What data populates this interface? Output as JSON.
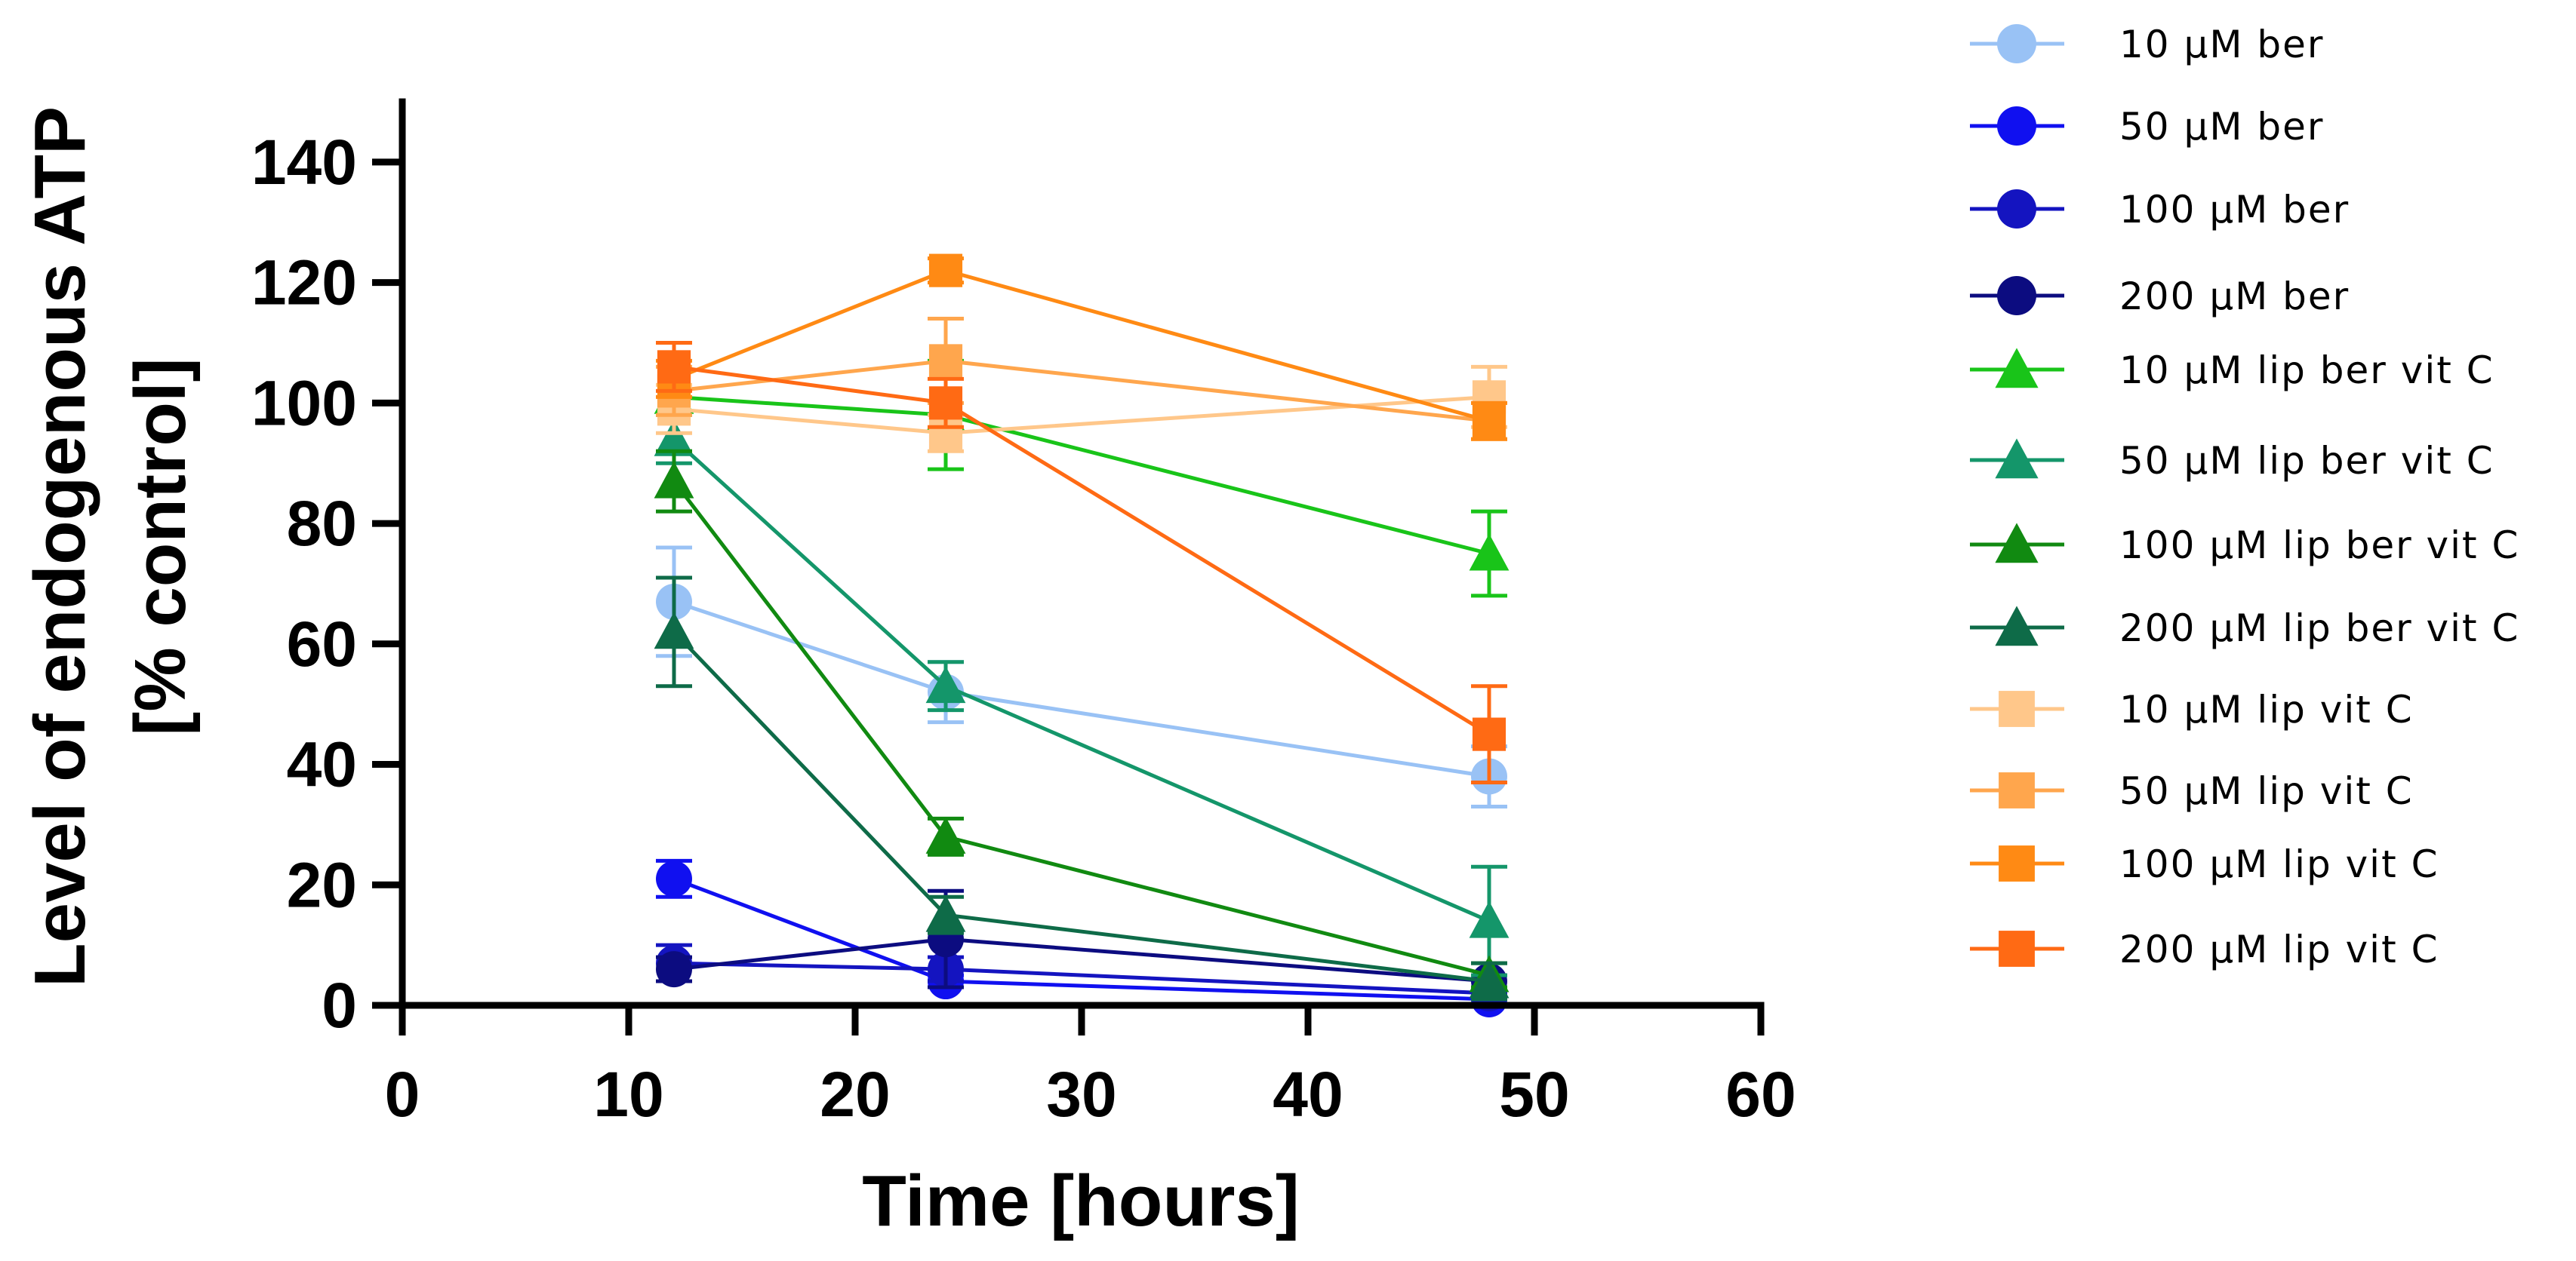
{
  "chart_data": {
    "type": "line",
    "title": "",
    "xlabel": "Time [hours]",
    "ylabel_lines": [
      "Level of endogenous ATP",
      "[% control]"
    ],
    "xlim": [
      0,
      60
    ],
    "ylim": [
      0,
      150
    ],
    "xticks": [
      0,
      10,
      20,
      30,
      40,
      50,
      60
    ],
    "yticks": [
      0,
      20,
      40,
      60,
      80,
      100,
      120,
      140
    ],
    "grid": false,
    "legend_position": "right",
    "x": [
      12,
      24,
      48
    ],
    "series": [
      {
        "name": "10 µM ber",
        "color": "#99C2F5",
        "marker": "circle",
        "values": [
          67,
          52,
          38
        ],
        "errors": [
          9,
          5,
          5
        ]
      },
      {
        "name": "50 µM ber",
        "color": "#1010F0",
        "marker": "circle",
        "values": [
          21,
          4,
          1
        ],
        "errors": [
          3,
          1,
          1
        ]
      },
      {
        "name": "100 µM ber",
        "color": "#1414C0",
        "marker": "circle",
        "values": [
          7,
          6,
          2
        ],
        "errors": [
          3,
          2,
          1
        ]
      },
      {
        "name": "200 µM ber",
        "color": "#0C0C80",
        "marker": "circle",
        "values": [
          6,
          11,
          4
        ],
        "errors": [
          2,
          8,
          1
        ]
      },
      {
        "name": "10 µM lip ber vit C",
        "color": "#19C419",
        "marker": "triangle",
        "values": [
          101,
          98,
          75
        ],
        "errors": [
          9,
          9,
          7
        ]
      },
      {
        "name": "50 µM lip ber vit C",
        "color": "#14966A",
        "marker": "triangle",
        "values": [
          94,
          53,
          14
        ],
        "errors": [
          4,
          4,
          9
        ]
      },
      {
        "name": "100 µM lip ber vit C",
        "color": "#118A11",
        "marker": "triangle",
        "values": [
          87,
          28,
          5
        ],
        "errors": [
          5,
          3,
          2
        ]
      },
      {
        "name": "200 µM lip ber vit C",
        "color": "#0E6B48",
        "marker": "triangle",
        "values": [
          62,
          15,
          4
        ],
        "errors": [
          9,
          3,
          3
        ]
      },
      {
        "name": "10 µM lip vit C",
        "color": "#FFC78A",
        "marker": "square",
        "values": [
          99,
          95,
          101
        ],
        "errors": [
          4,
          3,
          5
        ]
      },
      {
        "name": "50 µM lip vit C",
        "color": "#FFA64D",
        "marker": "square",
        "values": [
          102,
          107,
          97
        ],
        "errors": [
          4,
          7,
          3
        ]
      },
      {
        "name": "100 µM lip vit C",
        "color": "#FF8A14",
        "marker": "square",
        "values": [
          104,
          122,
          97
        ],
        "errors": [
          3,
          2,
          3
        ]
      },
      {
        "name": "200 µM lip vit C",
        "color": "#FF6A14",
        "marker": "square",
        "values": [
          106,
          100,
          45
        ],
        "errors": [
          4,
          4,
          8
        ]
      }
    ]
  }
}
